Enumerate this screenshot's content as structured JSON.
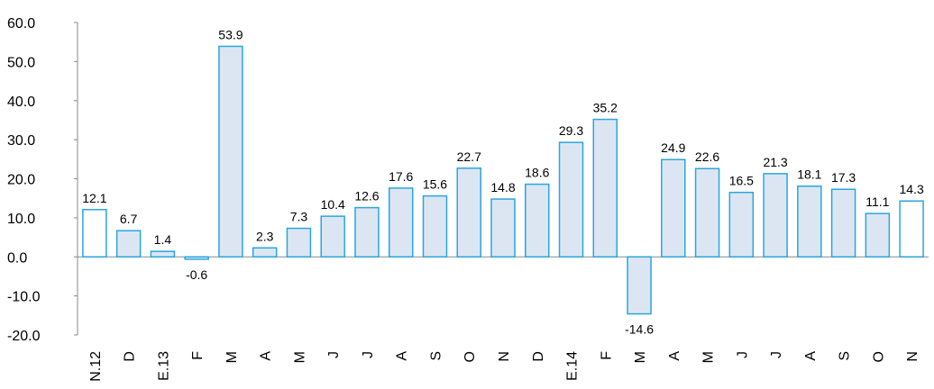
{
  "chart_data": {
    "type": "bar",
    "categories": [
      "N.12",
      "D",
      "E.13",
      "F",
      "M",
      "A",
      "M",
      "J",
      "J",
      "A",
      "S",
      "O",
      "N",
      "D",
      "E.14",
      "F",
      "M",
      "A",
      "M",
      "J",
      "J",
      "A",
      "S",
      "O",
      "N"
    ],
    "values": [
      12.1,
      6.7,
      1.4,
      -0.6,
      53.9,
      2.3,
      7.3,
      10.4,
      12.6,
      17.6,
      15.6,
      22.7,
      14.8,
      18.6,
      29.3,
      35.2,
      -14.6,
      24.9,
      22.6,
      16.5,
      21.3,
      18.1,
      17.3,
      11.1,
      14.3
    ],
    "colors": [
      "#ffffff",
      "#dce6f2",
      "#dce6f2",
      "#dce6f2",
      "#dce6f2",
      "#dce6f2",
      "#dce6f2",
      "#dce6f2",
      "#dce6f2",
      "#dce6f2",
      "#dce6f2",
      "#dce6f2",
      "#dce6f2",
      "#dce6f2",
      "#dce6f2",
      "#dce6f2",
      "#dce6f2",
      "#dce6f2",
      "#dce6f2",
      "#dce6f2",
      "#dce6f2",
      "#dce6f2",
      "#dce6f2",
      "#dce6f2",
      "#ffffff"
    ],
    "stroke": "#29a6de",
    "ylim": [
      -20,
      60
    ],
    "yticks": [
      {
        "value": -20,
        "label": "-20.0"
      },
      {
        "value": -10,
        "label": "-10.0"
      },
      {
        "value": 0,
        "label": "0.0"
      },
      {
        "value": 10,
        "label": "10.0"
      },
      {
        "value": 20,
        "label": "20.0"
      },
      {
        "value": 30,
        "label": "30.0"
      },
      {
        "value": 40,
        "label": "40.0"
      },
      {
        "value": 50,
        "label": "50.0"
      },
      {
        "value": 60,
        "label": "60.0"
      }
    ],
    "grid": false
  }
}
